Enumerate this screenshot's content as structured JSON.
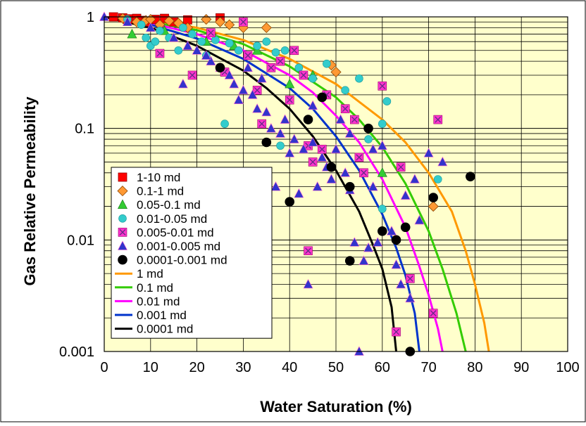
{
  "chart_data": {
    "type": "scatter",
    "title": "",
    "xlabel": "Water Saturation (%)",
    "ylabel": "Gas Relative Permeability",
    "xlim": [
      0,
      100
    ],
    "ylim": [
      0.001,
      1
    ],
    "y_scale": "log",
    "grid": "on",
    "legend_position": "lower-left",
    "x_ticks": [
      "0",
      "10",
      "20",
      "30",
      "40",
      "50",
      "60",
      "70",
      "80",
      "90",
      "100"
    ],
    "y_ticks": [
      "1",
      "0.1",
      "0.01",
      "0.001"
    ],
    "colors": {
      "plot_bg": "#ffffcc",
      "grid": "#000000"
    },
    "series": [
      {
        "name": "1-10 md",
        "kind": "points",
        "marker": "square",
        "color": "#ff0000",
        "points": [
          [
            2,
            1.0
          ],
          [
            4,
            0.98
          ],
          [
            5,
            0.95
          ],
          [
            6,
            0.96
          ],
          [
            7,
            0.97
          ],
          [
            8,
            0.93
          ],
          [
            9,
            0.9
          ],
          [
            11,
            0.95
          ],
          [
            13,
            0.97
          ],
          [
            15,
            0.9
          ],
          [
            18,
            0.94
          ],
          [
            25,
            0.98
          ]
        ]
      },
      {
        "name": "0.1-1 md",
        "kind": "points",
        "marker": "diamond",
        "color": "#ff9933",
        "points": [
          [
            4,
            0.97
          ],
          [
            7,
            0.9
          ],
          [
            9,
            0.93
          ],
          [
            10,
            0.95
          ],
          [
            12,
            0.85
          ],
          [
            14,
            0.92
          ],
          [
            16,
            0.88
          ],
          [
            18,
            0.8
          ],
          [
            22,
            0.95
          ],
          [
            25,
            0.9
          ],
          [
            27,
            0.85
          ],
          [
            30,
            0.8
          ],
          [
            35,
            0.8
          ],
          [
            49,
            0.37
          ],
          [
            50,
            0.32
          ],
          [
            71,
            0.02
          ]
        ]
      },
      {
        "name": "0.05-0.1 md",
        "kind": "points",
        "marker": "triangle",
        "color": "#33cc33",
        "points": [
          [
            6,
            0.7
          ],
          [
            13,
            0.75
          ],
          [
            22,
            0.6
          ],
          [
            28,
            0.55
          ],
          [
            33,
            0.5
          ],
          [
            40,
            0.25
          ],
          [
            45,
            0.3
          ],
          [
            60,
            0.04
          ]
        ]
      },
      {
        "name": "0.01-0.05 md",
        "kind": "points",
        "marker": "circle",
        "color": "#33cccc",
        "points": [
          [
            5,
            0.95
          ],
          [
            8,
            0.85
          ],
          [
            9,
            0.65
          ],
          [
            10,
            0.55
          ],
          [
            11,
            0.6
          ],
          [
            12,
            0.75
          ],
          [
            14,
            0.65
          ],
          [
            16,
            0.5
          ],
          [
            17,
            0.8
          ],
          [
            19,
            0.7
          ],
          [
            21,
            0.6
          ],
          [
            22,
            0.45
          ],
          [
            24,
            0.62
          ],
          [
            26,
            0.11
          ],
          [
            27,
            0.58
          ],
          [
            29,
            0.5
          ],
          [
            31,
            0.45
          ],
          [
            33,
            0.55
          ],
          [
            35,
            0.6
          ],
          [
            37,
            0.48
          ],
          [
            38,
            0.07
          ],
          [
            39,
            0.5
          ],
          [
            42,
            0.35
          ],
          [
            45,
            0.28
          ],
          [
            48,
            0.38
          ],
          [
            52,
            0.22
          ],
          [
            55,
            0.28
          ],
          [
            57,
            0.08
          ],
          [
            60,
            0.11
          ],
          [
            60,
            0.019
          ],
          [
            61,
            0.175
          ],
          [
            72,
            0.035
          ]
        ]
      },
      {
        "name": "0.005-0.01 md",
        "kind": "points",
        "marker": "square-x",
        "color": "#ff33cc",
        "points": [
          [
            12,
            0.47
          ],
          [
            19,
            0.3
          ],
          [
            23,
            0.72
          ],
          [
            26,
            0.32
          ],
          [
            30,
            0.9
          ],
          [
            31,
            0.45
          ],
          [
            33,
            0.22
          ],
          [
            34,
            0.11
          ],
          [
            36,
            0.35
          ],
          [
            38,
            0.4
          ],
          [
            40,
            0.18
          ],
          [
            41,
            0.5
          ],
          [
            43,
            0.3
          ],
          [
            44,
            0.07
          ],
          [
            44,
            0.008
          ],
          [
            45,
            0.05
          ],
          [
            47,
            0.065
          ],
          [
            48,
            0.2
          ],
          [
            52,
            0.15
          ],
          [
            54,
            0.12
          ],
          [
            55,
            0.055
          ],
          [
            56,
            0.04
          ],
          [
            60,
            0.24
          ],
          [
            63,
            0.0015
          ],
          [
            64,
            0.045
          ],
          [
            66,
            0.0045
          ],
          [
            71,
            0.0022
          ],
          [
            72,
            0.12
          ]
        ]
      },
      {
        "name": "0.001-0.005 md",
        "kind": "points",
        "marker": "triangle",
        "color": "#3333cc",
        "points": [
          [
            0,
            1.0
          ],
          [
            5,
            0.9
          ],
          [
            10,
            0.8
          ],
          [
            15,
            0.65
          ],
          [
            18,
            0.55
          ],
          [
            20,
            0.5
          ],
          [
            23,
            0.4
          ],
          [
            25,
            0.35
          ],
          [
            27,
            0.3
          ],
          [
            28,
            0.25
          ],
          [
            30,
            0.22
          ],
          [
            32,
            0.2
          ],
          [
            33,
            0.15
          ],
          [
            35,
            0.14
          ],
          [
            36,
            0.1
          ],
          [
            37,
            0.03
          ],
          [
            38,
            0.09
          ],
          [
            39,
            0.12
          ],
          [
            40,
            0.06
          ],
          [
            41,
            0.08
          ],
          [
            42,
            0.026
          ],
          [
            43,
            0.065
          ],
          [
            44,
            0.004
          ],
          [
            45,
            0.075
          ],
          [
            46,
            0.03
          ],
          [
            47,
            0.055
          ],
          [
            48,
            0.045
          ],
          [
            49,
            0.035
          ],
          [
            50,
            0.065
          ],
          [
            52,
            0.04
          ],
          [
            53,
            0.028
          ],
          [
            54,
            0.0095
          ],
          [
            55,
            0.001
          ],
          [
            56,
            0.0065
          ],
          [
            57,
            0.0085
          ],
          [
            58,
            0.03
          ],
          [
            59,
            0.0095
          ],
          [
            60,
            0.07
          ],
          [
            62,
            0.012
          ],
          [
            63,
            0.006
          ],
          [
            64,
            0.004
          ],
          [
            65,
            0.025
          ],
          [
            66,
            0.003
          ],
          [
            67,
            0.035
          ],
          [
            68,
            0.015
          ],
          [
            70,
            0.06
          ],
          [
            73,
            0.05
          ],
          [
            17,
            0.25
          ],
          [
            22,
            0.45
          ],
          [
            29,
            0.18
          ],
          [
            31,
            0.35
          ],
          [
            34,
            0.28
          ],
          [
            45,
            0.16
          ],
          [
            51,
            0.12
          ],
          [
            53,
            0.09
          ],
          [
            58,
            0.065
          ]
        ]
      },
      {
        "name": "0.0001-0.001 md",
        "kind": "points",
        "marker": "circle",
        "color": "#000000",
        "points": [
          [
            25,
            0.35
          ],
          [
            35,
            0.075
          ],
          [
            40,
            0.022
          ],
          [
            44,
            0.12
          ],
          [
            47,
            0.19
          ],
          [
            49,
            0.045
          ],
          [
            53,
            0.03
          ],
          [
            53,
            0.0065
          ],
          [
            57,
            0.1
          ],
          [
            60,
            0.012
          ],
          [
            63,
            0.01
          ],
          [
            65,
            0.013
          ],
          [
            66,
            0.001
          ],
          [
            71,
            0.024
          ],
          [
            79,
            0.037
          ]
        ]
      },
      {
        "name": "1 md",
        "kind": "line",
        "color": "#ff9900",
        "points": [
          [
            0,
            1.0
          ],
          [
            10,
            0.92
          ],
          [
            20,
            0.8
          ],
          [
            30,
            0.62
          ],
          [
            40,
            0.42
          ],
          [
            50,
            0.25
          ],
          [
            60,
            0.12
          ],
          [
            65,
            0.075
          ],
          [
            70,
            0.04
          ],
          [
            75,
            0.018
          ],
          [
            78,
            0.008
          ],
          [
            80,
            0.004
          ],
          [
            82,
            0.0018
          ],
          [
            83,
            0.001
          ]
        ]
      },
      {
        "name": "0.1 md",
        "kind": "line",
        "color": "#33cc00",
        "points": [
          [
            0,
            1.0
          ],
          [
            10,
            0.9
          ],
          [
            20,
            0.76
          ],
          [
            30,
            0.57
          ],
          [
            40,
            0.36
          ],
          [
            50,
            0.19
          ],
          [
            55,
            0.12
          ],
          [
            60,
            0.068
          ],
          [
            65,
            0.032
          ],
          [
            70,
            0.012
          ],
          [
            73,
            0.0055
          ],
          [
            76,
            0.0022
          ],
          [
            78,
            0.001
          ]
        ]
      },
      {
        "name": "0.01 md",
        "kind": "line",
        "color": "#ff00ff",
        "points": [
          [
            0,
            1.0
          ],
          [
            10,
            0.88
          ],
          [
            20,
            0.7
          ],
          [
            30,
            0.5
          ],
          [
            40,
            0.3
          ],
          [
            45,
            0.21
          ],
          [
            50,
            0.13
          ],
          [
            55,
            0.075
          ],
          [
            60,
            0.035
          ],
          [
            65,
            0.013
          ],
          [
            68,
            0.0058
          ],
          [
            70,
            0.0032
          ],
          [
            72,
            0.0016
          ],
          [
            73,
            0.001
          ]
        ]
      },
      {
        "name": "0.001 md",
        "kind": "line",
        "color": "#0033cc",
        "points": [
          [
            0,
            1.0
          ],
          [
            10,
            0.85
          ],
          [
            20,
            0.64
          ],
          [
            30,
            0.42
          ],
          [
            40,
            0.23
          ],
          [
            45,
            0.15
          ],
          [
            50,
            0.085
          ],
          [
            55,
            0.042
          ],
          [
            60,
            0.017
          ],
          [
            63,
            0.0085
          ],
          [
            65,
            0.0048
          ],
          [
            67,
            0.0022
          ],
          [
            68,
            0.001
          ]
        ]
      },
      {
        "name": "0.0001 md",
        "kind": "line",
        "color": "#000000",
        "points": [
          [
            0,
            1.0
          ],
          [
            10,
            0.8
          ],
          [
            20,
            0.55
          ],
          [
            30,
            0.33
          ],
          [
            35,
            0.23
          ],
          [
            40,
            0.15
          ],
          [
            45,
            0.085
          ],
          [
            50,
            0.042
          ],
          [
            55,
            0.018
          ],
          [
            58,
            0.009
          ],
          [
            60,
            0.0055
          ],
          [
            62,
            0.0025
          ],
          [
            63,
            0.001
          ]
        ]
      }
    ]
  }
}
